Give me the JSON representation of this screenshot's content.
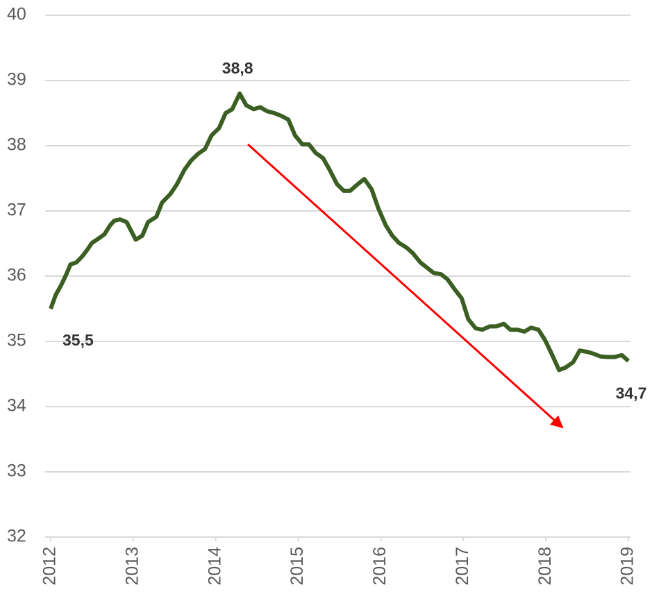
{
  "chart_data": {
    "type": "line",
    "x": [
      2012.0,
      2012.06,
      2012.13,
      2012.19,
      2012.24,
      2012.31,
      2012.38,
      2012.44,
      2012.5,
      2012.56,
      2012.65,
      2012.72,
      2012.77,
      2012.84,
      2012.92,
      2013.03,
      2013.11,
      2013.18,
      2013.28,
      2013.35,
      2013.45,
      2013.53,
      2013.62,
      2013.7,
      2013.78,
      2013.87,
      2013.95,
      2014.04,
      2014.12,
      2014.2,
      2014.29,
      2014.37,
      2014.46,
      2014.54,
      2014.62,
      2014.71,
      2014.79,
      2014.88,
      2014.96,
      2015.05,
      2015.13,
      2015.21,
      2015.3,
      2015.38,
      2015.47,
      2015.55,
      2015.63,
      2015.72,
      2015.8,
      2015.89,
      2015.97,
      2016.06,
      2016.14,
      2016.22,
      2016.31,
      2016.39,
      2016.48,
      2016.56,
      2016.64,
      2016.73,
      2016.81,
      2016.9,
      2016.98,
      2017.06,
      2017.15,
      2017.23,
      2017.32,
      2017.4,
      2017.49,
      2017.57,
      2017.65,
      2017.74,
      2017.82,
      2017.91,
      2017.99,
      2018.07,
      2018.16,
      2018.24,
      2018.33,
      2018.41,
      2018.5,
      2018.58,
      2018.66,
      2018.75,
      2018.83,
      2018.92,
      2019.0
    ],
    "series": [
      {
        "color": "#3b5e22",
        "values": [
          35.5,
          35.71,
          35.87,
          36.03,
          36.18,
          36.21,
          36.3,
          36.4,
          36.51,
          36.56,
          36.64,
          36.78,
          36.85,
          36.87,
          36.83,
          36.56,
          36.62,
          36.83,
          36.91,
          37.13,
          37.26,
          37.41,
          37.63,
          37.77,
          37.87,
          37.95,
          38.16,
          38.27,
          38.5,
          38.56,
          38.8,
          38.62,
          38.56,
          38.59,
          38.53,
          38.5,
          38.46,
          38.4,
          38.16,
          38.02,
          38.02,
          37.89,
          37.81,
          37.63,
          37.41,
          37.31,
          37.31,
          37.41,
          37.49,
          37.33,
          37.04,
          36.78,
          36.62,
          36.51,
          36.44,
          36.35,
          36.21,
          36.13,
          36.05,
          36.03,
          35.95,
          35.79,
          35.66,
          35.34,
          35.2,
          35.18,
          35.23,
          35.23,
          35.27,
          35.18,
          35.18,
          35.15,
          35.21,
          35.18,
          35.02,
          34.81,
          34.56,
          34.6,
          34.68,
          34.86,
          34.84,
          34.81,
          34.77,
          34.76,
          34.76,
          34.79,
          34.7
        ]
      }
    ],
    "xlim": [
      2012,
      2019
    ],
    "xticks": [
      2012,
      2013,
      2014,
      2015,
      2016,
      2017,
      2018,
      2019
    ],
    "ylim": [
      32,
      40
    ],
    "yticks": [
      32,
      33,
      34,
      35,
      36,
      37,
      38,
      39,
      40
    ],
    "grid": true,
    "annotations": [
      {
        "text": "35,5",
        "x": 2012.0,
        "y": 35.5
      },
      {
        "text": "38,8",
        "x": 2014.29,
        "y": 38.8
      },
      {
        "text": "34,7",
        "x": 2019.0,
        "y": 34.7
      }
    ]
  }
}
